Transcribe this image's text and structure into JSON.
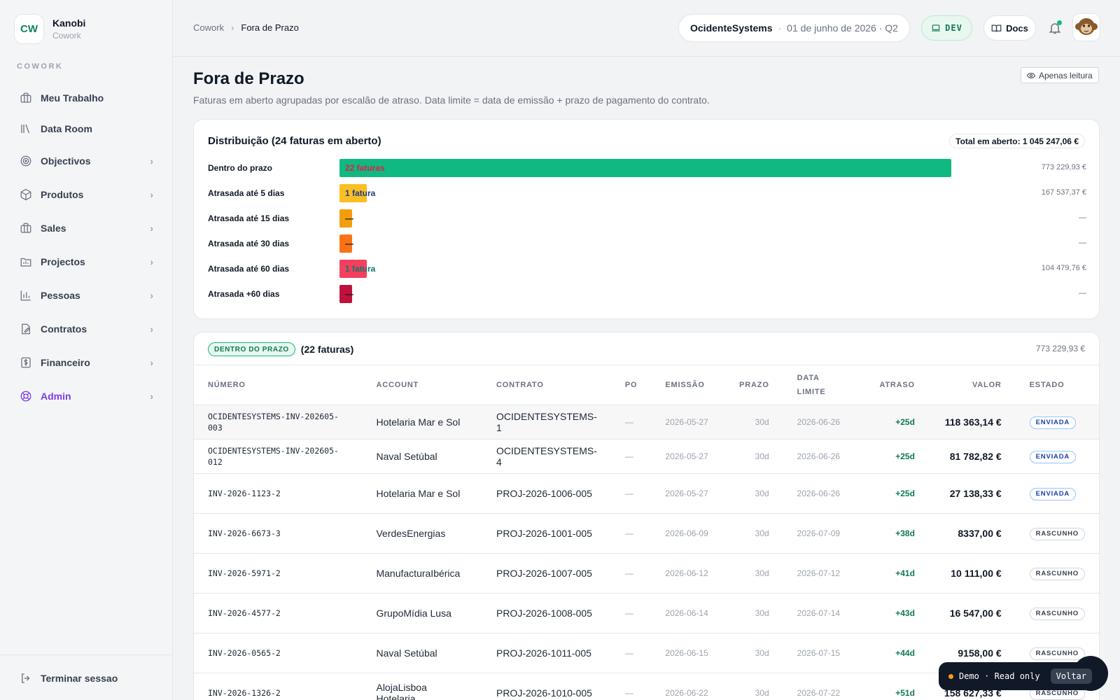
{
  "brand": {
    "initials": "CW",
    "name": "Kanobi",
    "sub": "Cowork"
  },
  "sidebar": {
    "section": "COWORK",
    "items": [
      {
        "label": "Meu Trabalho",
        "icon": "briefcase-icon",
        "chevron": false
      },
      {
        "label": "Data Room",
        "icon": "library-icon",
        "chevron": false
      },
      {
        "label": "Objectivos",
        "icon": "target-icon",
        "chevron": true
      },
      {
        "label": "Produtos",
        "icon": "box-icon",
        "chevron": true
      },
      {
        "label": "Sales",
        "icon": "briefcase-icon",
        "chevron": true
      },
      {
        "label": "Projectos",
        "icon": "folder-chart-icon",
        "chevron": true
      },
      {
        "label": "Pessoas",
        "icon": "bar-chart-icon",
        "chevron": true
      },
      {
        "label": "Contratos",
        "icon": "file-edit-icon",
        "chevron": true
      },
      {
        "label": "Financeiro",
        "icon": "dollar-icon",
        "chevron": true
      },
      {
        "label": "Admin",
        "icon": "lifebuoy-icon",
        "chevron": true,
        "active": true
      }
    ],
    "logout": "Terminar sessao"
  },
  "topbar": {
    "breadcrumb": [
      "Cowork",
      "Fora de Prazo"
    ],
    "org": "OcidenteSystems",
    "date": "01 de junho de 2026 · Q2",
    "dev": "DEV",
    "docs": "Docs"
  },
  "page": {
    "title": "Fora de Prazo",
    "subtitle": "Faturas em aberto agrupadas por escalão de atraso. Data limite = data de emissão + prazo de pagamento do contrato.",
    "readonly": "Apenas leitura"
  },
  "distribution": {
    "title": "Distribuição (24 faturas em aberto)",
    "total": "Total em aberto: 1 045 247,06 €",
    "rows": [
      {
        "label": "Dentro do prazo",
        "bar_text": "22 faturas",
        "value": "773 229,93 €",
        "color": "#10b981",
        "text_color": "#e11d48",
        "share": 1.0
      },
      {
        "label": "Atrasada até 5 dias",
        "bar_text": "1 fatura",
        "value": "167 537,37 €",
        "color": "#fbbf24",
        "text_color": "#1e3a8a",
        "share": 0.045
      },
      {
        "label": "Atrasada até 15 dias",
        "bar_text": "—",
        "value": "—",
        "color": "#f59e0b",
        "text_color": "#111827",
        "share": 0.02
      },
      {
        "label": "Atrasada até 30 dias",
        "bar_text": "—",
        "value": "—",
        "color": "#f97316",
        "text_color": "#111827",
        "share": 0.02
      },
      {
        "label": "Atrasada até 60 dias",
        "bar_text": "1 fatura",
        "value": "104 479,76 €",
        "color": "#f43f5e",
        "text_color": "#0f766e",
        "share": 0.045
      },
      {
        "label": "Atrasada +60 dias",
        "bar_text": "—",
        "value": "—",
        "color": "#be123c",
        "text_color": "#111827",
        "share": 0.02
      }
    ]
  },
  "table": {
    "tag": "DENTRO DO PRAZO",
    "count": "(22 faturas)",
    "total": "773 229,93 €",
    "headers": [
      "NÚMERO",
      "ACCOUNT",
      "CONTRATO",
      "PO",
      "EMISSÃO",
      "PRAZO",
      "DATA LIMITE",
      "ATRASO",
      "VALOR",
      "ESTADO"
    ],
    "rows": [
      {
        "numero": "OCIDENTESYSTEMS-INV-202605-003",
        "account": "Hotelaria Mar e Sol",
        "contrato": "OCIDENTESYSTEMS-1",
        "po": "—",
        "emissao": "2026-05-27",
        "prazo": "30d",
        "limite": "2026-06-26",
        "atraso": "+25d",
        "valor": "118 363,14 €",
        "estado": "ENVIADA"
      },
      {
        "numero": "OCIDENTESYSTEMS-INV-202605-012",
        "account": "Naval Setúbal",
        "contrato": "OCIDENTESYSTEMS-4",
        "po": "—",
        "emissao": "2026-05-27",
        "prazo": "30d",
        "limite": "2026-06-26",
        "atraso": "+25d",
        "valor": "81 782,82 €",
        "estado": "ENVIADA"
      },
      {
        "numero": "INV-2026-1123-2",
        "account": "Hotelaria Mar e Sol",
        "contrato": "PROJ-2026-1006-005",
        "po": "—",
        "emissao": "2026-05-27",
        "prazo": "30d",
        "limite": "2026-06-26",
        "atraso": "+25d",
        "valor": "27 138,33 €",
        "estado": "ENVIADA"
      },
      {
        "numero": "INV-2026-6673-3",
        "account": "VerdesEnergias",
        "contrato": "PROJ-2026-1001-005",
        "po": "—",
        "emissao": "2026-06-09",
        "prazo": "30d",
        "limite": "2026-07-09",
        "atraso": "+38d",
        "valor": "8337,00 €",
        "estado": "RASCUNHO"
      },
      {
        "numero": "INV-2026-5971-2",
        "account": "ManufacturaIbérica",
        "contrato": "PROJ-2026-1007-005",
        "po": "—",
        "emissao": "2026-06-12",
        "prazo": "30d",
        "limite": "2026-07-12",
        "atraso": "+41d",
        "valor": "10 111,00 €",
        "estado": "RASCUNHO"
      },
      {
        "numero": "INV-2026-4577-2",
        "account": "GrupoMídia Lusa",
        "contrato": "PROJ-2026-1008-005",
        "po": "—",
        "emissao": "2026-06-14",
        "prazo": "30d",
        "limite": "2026-07-14",
        "atraso": "+43d",
        "valor": "16 547,00 €",
        "estado": "RASCUNHO"
      },
      {
        "numero": "INV-2026-0565-2",
        "account": "Naval Setúbal",
        "contrato": "PROJ-2026-1011-005",
        "po": "—",
        "emissao": "2026-06-15",
        "prazo": "30d",
        "limite": "2026-07-15",
        "atraso": "+44d",
        "valor": "9158,00 €",
        "estado": "RASCUNHO"
      },
      {
        "numero": "INV-2026-1326-2",
        "account": "AlojaLisboa Hotelaria",
        "contrato": "PROJ-2026-1010-005",
        "po": "—",
        "emissao": "2026-06-22",
        "prazo": "30d",
        "limite": "2026-07-22",
        "atraso": "+51d",
        "valor": "158 627,33 €",
        "estado": "RASCUNHO"
      }
    ]
  },
  "demo": {
    "label": "Demo · Read only",
    "back": "Voltar"
  }
}
